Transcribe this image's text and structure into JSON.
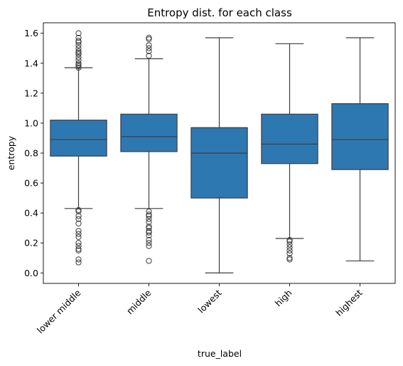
{
  "chart_data": {
    "type": "box",
    "title": "Entropy dist. for each class",
    "xlabel": "true_label",
    "ylabel": "entropy",
    "ylim": [
      -0.07,
      1.67
    ],
    "yticks": [
      0.0,
      0.2,
      0.4,
      0.6,
      0.8,
      1.0,
      1.2,
      1.4,
      1.6
    ],
    "ytick_labels": [
      "0.0",
      "0.2",
      "0.4",
      "0.6",
      "0.8",
      "1.0",
      "1.2",
      "1.4",
      "1.6"
    ],
    "xtick_rotation": 45,
    "grid": false,
    "legend": false,
    "box_color": "#2e78b2",
    "line_color": "#3d3d3d",
    "categories": [
      "lower middle",
      "middle",
      "lowest",
      "high",
      "highest"
    ],
    "boxes": [
      {
        "category": "lower middle",
        "whisker_low": 0.43,
        "q1": 0.78,
        "median": 0.89,
        "q3": 1.02,
        "whisker_high": 1.37,
        "outliers": [
          0.07,
          0.09,
          0.15,
          0.16,
          0.18,
          0.2,
          0.24,
          0.26,
          0.28,
          0.33,
          0.36,
          0.38,
          0.41,
          0.42,
          1.37,
          1.38,
          1.39,
          1.4,
          1.42,
          1.44,
          1.46,
          1.47,
          1.48,
          1.5,
          1.52,
          1.54,
          1.55,
          1.57,
          1.6
        ]
      },
      {
        "category": "middle",
        "whisker_low": 0.43,
        "q1": 0.81,
        "median": 0.91,
        "q3": 1.06,
        "whisker_high": 1.43,
        "outliers": [
          0.08,
          0.18,
          0.2,
          0.22,
          0.25,
          0.27,
          0.28,
          0.3,
          0.31,
          0.34,
          0.36,
          0.38,
          0.39,
          0.41,
          1.45,
          1.48,
          1.5,
          1.52,
          1.56,
          1.57
        ]
      },
      {
        "category": "lowest",
        "whisker_low": 0.0,
        "q1": 0.5,
        "median": 0.8,
        "q3": 0.97,
        "whisker_high": 1.57,
        "outliers": []
      },
      {
        "category": "high",
        "whisker_low": 0.23,
        "q1": 0.73,
        "median": 0.86,
        "q3": 1.06,
        "whisker_high": 1.53,
        "outliers": [
          0.09,
          0.1,
          0.13,
          0.15,
          0.17,
          0.19,
          0.21,
          0.22
        ]
      },
      {
        "category": "highest",
        "whisker_low": 0.08,
        "q1": 0.69,
        "median": 0.89,
        "q3": 1.13,
        "whisker_high": 1.57,
        "outliers": []
      }
    ]
  }
}
